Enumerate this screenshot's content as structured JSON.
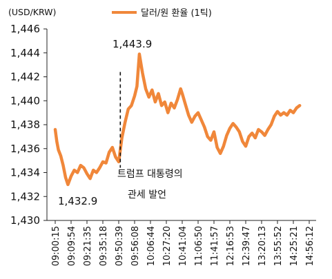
{
  "chart_data": {
    "type": "line",
    "unit_label": "(USD/KRW)",
    "legend": "달러/원 환율 (1틱)",
    "colors": {
      "series": "#F0873A",
      "axis": "#222222"
    },
    "ylim": [
      1430,
      1446
    ],
    "y_ticks": [
      "1,430",
      "1,432",
      "1,434",
      "1,436",
      "1,438",
      "1,440",
      "1,442",
      "1,444",
      "1,446"
    ],
    "x_ticks": [
      "09:00:15",
      "09:09:54",
      "09:21:35",
      "09:35:18",
      "09:50:39",
      "09:56:08",
      "10:06:44",
      "10:27:20",
      "10:41:04",
      "11:06:50",
      "11:41:57",
      "12:16:53",
      "12:39:47",
      "13:20:13",
      "13:55:52",
      "14:25:21",
      "14:56:12"
    ],
    "series": [
      {
        "name": "달러/원 환율 (1틱)",
        "points": [
          [
            0.0,
            1437.6
          ],
          [
            0.1,
            1436.6
          ],
          [
            0.2,
            1435.9
          ],
          [
            0.35,
            1435.4
          ],
          [
            0.5,
            1434.6
          ],
          [
            0.65,
            1433.6
          ],
          [
            0.8,
            1433.0
          ],
          [
            1.0,
            1433.7
          ],
          [
            1.2,
            1434.2
          ],
          [
            1.4,
            1434.0
          ],
          [
            1.6,
            1434.6
          ],
          [
            1.8,
            1434.4
          ],
          [
            2.0,
            1433.9
          ],
          [
            2.2,
            1433.5
          ],
          [
            2.4,
            1434.2
          ],
          [
            2.6,
            1434.0
          ],
          [
            2.8,
            1434.4
          ],
          [
            3.0,
            1434.9
          ],
          [
            3.2,
            1434.8
          ],
          [
            3.4,
            1435.7
          ],
          [
            3.6,
            1436.1
          ],
          [
            3.8,
            1435.3
          ],
          [
            4.0,
            1434.9
          ],
          [
            4.2,
            1436.9
          ],
          [
            4.4,
            1438.2
          ],
          [
            4.6,
            1439.3
          ],
          [
            4.8,
            1439.6
          ],
          [
            5.0,
            1440.4
          ],
          [
            5.15,
            1441.2
          ],
          [
            5.3,
            1443.9
          ],
          [
            5.5,
            1442.3
          ],
          [
            5.7,
            1441.0
          ],
          [
            5.9,
            1440.3
          ],
          [
            6.1,
            1440.9
          ],
          [
            6.3,
            1439.9
          ],
          [
            6.5,
            1440.6
          ],
          [
            6.7,
            1439.6
          ],
          [
            6.9,
            1439.9
          ],
          [
            7.1,
            1439.0
          ],
          [
            7.3,
            1439.8
          ],
          [
            7.5,
            1439.4
          ],
          [
            7.7,
            1440.1
          ],
          [
            7.9,
            1441.0
          ],
          [
            8.0,
            1440.6
          ],
          [
            8.2,
            1439.7
          ],
          [
            8.4,
            1438.8
          ],
          [
            8.6,
            1438.2
          ],
          [
            8.8,
            1438.7
          ],
          [
            9.0,
            1439.0
          ],
          [
            9.2,
            1438.4
          ],
          [
            9.4,
            1437.8
          ],
          [
            9.6,
            1437.0
          ],
          [
            9.8,
            1436.7
          ],
          [
            10.0,
            1437.4
          ],
          [
            10.2,
            1436.1
          ],
          [
            10.4,
            1435.6
          ],
          [
            10.6,
            1436.2
          ],
          [
            10.8,
            1437.1
          ],
          [
            11.0,
            1437.7
          ],
          [
            11.2,
            1438.1
          ],
          [
            11.4,
            1437.8
          ],
          [
            11.6,
            1437.4
          ],
          [
            11.8,
            1436.6
          ],
          [
            12.0,
            1436.2
          ],
          [
            12.2,
            1437.0
          ],
          [
            12.4,
            1437.3
          ],
          [
            12.6,
            1436.9
          ],
          [
            12.8,
            1437.6
          ],
          [
            13.0,
            1437.4
          ],
          [
            13.2,
            1437.1
          ],
          [
            13.4,
            1437.6
          ],
          [
            13.6,
            1438.0
          ],
          [
            13.8,
            1438.7
          ],
          [
            14.0,
            1439.1
          ],
          [
            14.2,
            1438.8
          ],
          [
            14.4,
            1439.0
          ],
          [
            14.6,
            1438.8
          ],
          [
            14.8,
            1439.2
          ],
          [
            15.0,
            1439.0
          ],
          [
            15.2,
            1439.4
          ],
          [
            15.4,
            1439.6
          ]
        ]
      }
    ],
    "annotations": {
      "peak": "1,443.9",
      "trough": "1,432.9",
      "event_line1": "트럼프 대통령의",
      "event_line2": "관세 발언",
      "event_x": 4.1
    }
  }
}
